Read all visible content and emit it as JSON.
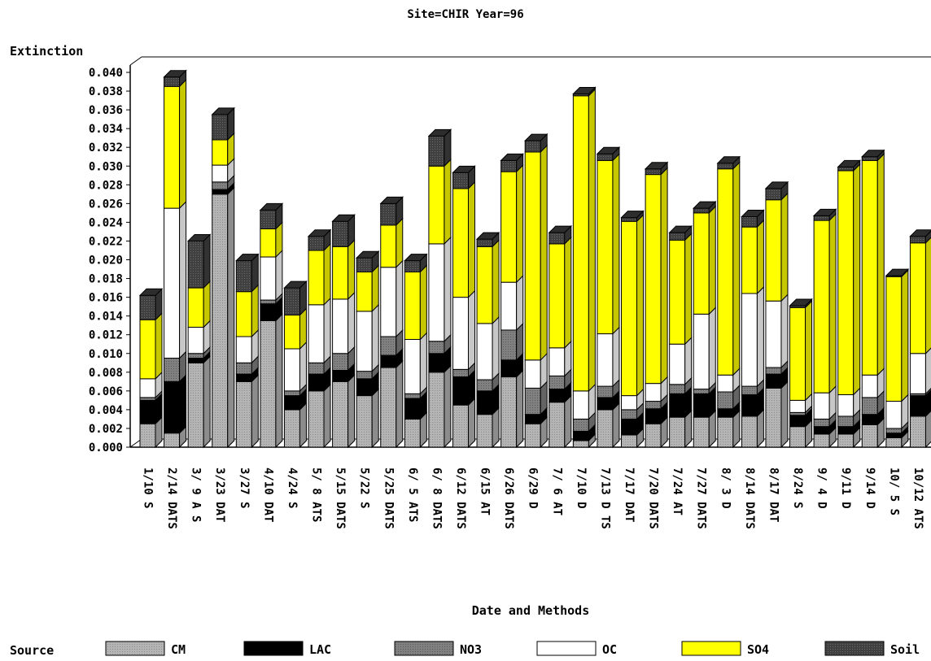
{
  "chart_data": {
    "type": "bar",
    "stacked": true,
    "title": "Site=CHIR Year=96",
    "ylabel": "Extinction",
    "xlabel": "Date and Methods",
    "legend_title": "Source",
    "legend_position": "bottom",
    "ylim": [
      0,
      0.04
    ],
    "yticks": [
      "0.000",
      "0.002",
      "0.004",
      "0.006",
      "0.008",
      "0.010",
      "0.012",
      "0.014",
      "0.016",
      "0.018",
      "0.020",
      "0.022",
      "0.024",
      "0.026",
      "0.028",
      "0.030",
      "0.032",
      "0.034",
      "0.036",
      "0.038",
      "0.040"
    ],
    "categories": [
      "1/10 S",
      "2/14 DATS",
      "3/ 9 A S",
      "3/23 DAT",
      "3/27 S",
      "4/10 DAT",
      "4/24 S",
      "5/ 8 ATS",
      "5/15 DATS",
      "5/22 S",
      "5/25 DATS",
      "6/ 5 ATS",
      "6/ 8 DATS",
      "6/12 DATS",
      "6/15 AT",
      "6/26 DATS",
      "6/29 D",
      "7/ 6 AT",
      "7/10 D",
      "7/13 D TS",
      "7/17 DAT",
      "7/20 DATS",
      "7/24 AT",
      "7/27 DATS",
      "8/ 3 D",
      "8/14 DATS",
      "8/17 DAT",
      "8/24 S",
      "9/ 4 D",
      "9/11 D",
      "9/14 D",
      "10/ 5 S",
      "10/12 ATS"
    ],
    "series": [
      {
        "name": "CM",
        "color": "#b4b4b4",
        "values": [
          0.0025,
          0.0015,
          0.009,
          0.027,
          0.007,
          0.0135,
          0.004,
          0.006,
          0.007,
          0.0055,
          0.0085,
          0.003,
          0.008,
          0.0045,
          0.0035,
          0.0075,
          0.0025,
          0.0048,
          0.0007,
          0.004,
          0.0013,
          0.0025,
          0.0032,
          0.0032,
          0.0032,
          0.0033,
          0.0063,
          0.0022,
          0.0014,
          0.0014,
          0.0024,
          0.001,
          0.0033
        ]
      },
      {
        "name": "LAC",
        "color": "#000000",
        "values": [
          0.0025,
          0.0055,
          0.0005,
          0.0005,
          0.0008,
          0.0018,
          0.0015,
          0.0018,
          0.0012,
          0.0018,
          0.0013,
          0.0022,
          0.002,
          0.003,
          0.0025,
          0.0018,
          0.001,
          0.0014,
          0.001,
          0.0013,
          0.0017,
          0.0016,
          0.0025,
          0.0025,
          0.0009,
          0.0023,
          0.0015,
          0.0012,
          0.0008,
          0.0008,
          0.0011,
          0.0005,
          0.0022
        ]
      },
      {
        "name": "NO3",
        "color": "#808080",
        "values": [
          0.0003,
          0.0025,
          0.0005,
          0.0008,
          0.0012,
          0.0004,
          0.0005,
          0.0012,
          0.0018,
          0.0008,
          0.002,
          0.0005,
          0.0013,
          0.0008,
          0.0012,
          0.0032,
          0.0028,
          0.0014,
          0.0013,
          0.0012,
          0.001,
          0.0008,
          0.001,
          0.0005,
          0.0018,
          0.0009,
          0.0007,
          0.0003,
          0.0008,
          0.0011,
          0.0018,
          0.0005,
          0.0002
        ]
      },
      {
        "name": "OC",
        "color": "#ffffff",
        "values": [
          0.002,
          0.016,
          0.0028,
          0.0018,
          0.0028,
          0.0046,
          0.0045,
          0.0062,
          0.0058,
          0.0064,
          0.0074,
          0.0058,
          0.0104,
          0.0077,
          0.006,
          0.0051,
          0.003,
          0.003,
          0.003,
          0.0056,
          0.0015,
          0.0019,
          0.0043,
          0.008,
          0.0018,
          0.0099,
          0.0071,
          0.0013,
          0.0028,
          0.0023,
          0.0024,
          0.0029,
          0.0043
        ]
      },
      {
        "name": "SO4",
        "color": "#ffff00",
        "values": [
          0.0063,
          0.013,
          0.0042,
          0.0027,
          0.0048,
          0.003,
          0.0036,
          0.0058,
          0.0056,
          0.0042,
          0.0045,
          0.0072,
          0.0083,
          0.0116,
          0.0082,
          0.0118,
          0.0222,
          0.0111,
          0.0315,
          0.0185,
          0.0186,
          0.0223,
          0.0111,
          0.0108,
          0.022,
          0.0071,
          0.0108,
          0.0099,
          0.0184,
          0.0239,
          0.0229,
          0.0133,
          0.0118
        ]
      },
      {
        "name": "Soil",
        "color": "#404040",
        "values": [
          0.0026,
          0.001,
          0.005,
          0.0027,
          0.0033,
          0.002,
          0.0029,
          0.0015,
          0.0027,
          0.0015,
          0.0023,
          0.0012,
          0.0032,
          0.0017,
          0.0008,
          0.0012,
          0.0012,
          0.0012,
          0.0002,
          0.0007,
          0.0004,
          0.0006,
          0.0008,
          0.0005,
          0.0006,
          0.0011,
          0.0012,
          0.0002,
          0.0005,
          0.0004,
          0.0004,
          0.0001,
          0.0007
        ]
      }
    ]
  }
}
